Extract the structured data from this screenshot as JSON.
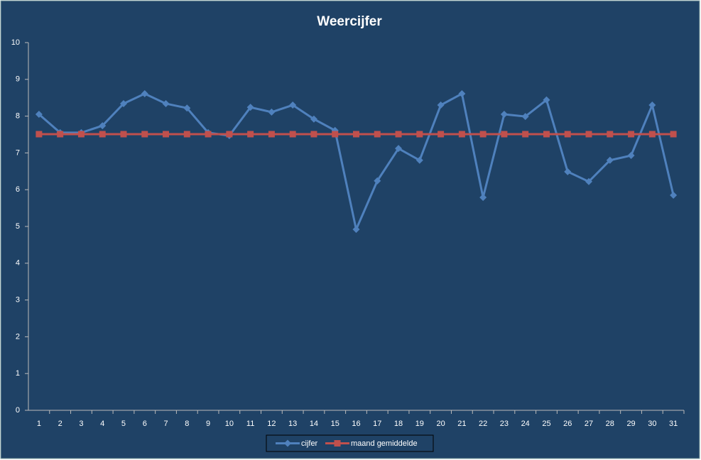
{
  "chart_data": {
    "type": "line",
    "title": "Weercijfer",
    "categories": [
      1,
      2,
      3,
      4,
      5,
      6,
      7,
      8,
      9,
      10,
      11,
      12,
      13,
      14,
      15,
      16,
      17,
      18,
      19,
      20,
      21,
      22,
      23,
      24,
      25,
      26,
      27,
      28,
      29,
      30,
      31
    ],
    "series": [
      {
        "name": "cijfer",
        "color": "#4f81bd",
        "marker": "diamond",
        "values": [
          8.05,
          7.55,
          7.55,
          7.74,
          8.34,
          8.61,
          8.34,
          8.22,
          7.55,
          7.47,
          8.24,
          8.11,
          8.3,
          7.92,
          7.61,
          4.92,
          6.24,
          7.12,
          6.8,
          8.3,
          8.61,
          5.79,
          8.05,
          7.99,
          8.44,
          6.49,
          6.22,
          6.8,
          6.93,
          8.3,
          5.85
        ]
      },
      {
        "name": "maand gemiddelde",
        "color": "#c0504d",
        "marker": "square",
        "values": [
          7.51,
          7.51,
          7.51,
          7.51,
          7.51,
          7.51,
          7.51,
          7.51,
          7.51,
          7.51,
          7.51,
          7.51,
          7.51,
          7.51,
          7.51,
          7.51,
          7.51,
          7.51,
          7.51,
          7.51,
          7.51,
          7.51,
          7.51,
          7.51,
          7.51,
          7.51,
          7.51,
          7.51,
          7.51,
          7.51,
          7.51
        ]
      }
    ],
    "ylim": [
      0,
      10
    ],
    "yticks": [
      0,
      1,
      2,
      3,
      4,
      5,
      6,
      7,
      8,
      9,
      10
    ],
    "grid": false,
    "legend": "bottom"
  }
}
